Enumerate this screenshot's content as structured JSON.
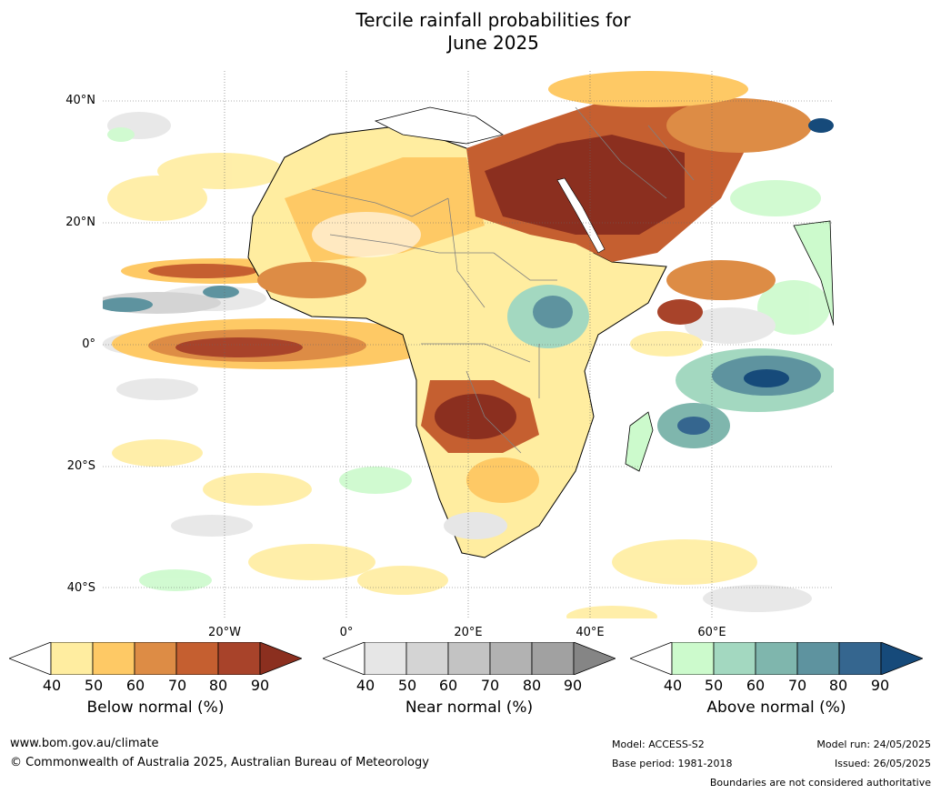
{
  "title_line1": "Tercile rainfall probabilities for",
  "title_line2": "June 2025",
  "lat_labels": [
    "40°N",
    "20°N",
    "0°",
    "20°S",
    "40°S"
  ],
  "lon_labels": [
    "20°W",
    "0°",
    "20°E",
    "40°E",
    "60°E"
  ],
  "colorbars": [
    {
      "title": "Below normal (%)",
      "ticks": [
        "40",
        "50",
        "60",
        "70",
        "80",
        "90"
      ],
      "colors": [
        "#ffffff",
        "#ffeda0",
        "#fec965",
        "#dd8c45",
        "#c55f30",
        "#a8432a",
        "#8b2f1f"
      ]
    },
    {
      "title": "Near normal (%)",
      "ticks": [
        "40",
        "50",
        "60",
        "70",
        "80",
        "90"
      ],
      "colors": [
        "#ffffff",
        "#e6e6e6",
        "#d4d4d4",
        "#c3c3c3",
        "#b2b2b2",
        "#a1a1a1",
        "#858585"
      ]
    },
    {
      "title": "Above normal (%)",
      "ticks": [
        "40",
        "50",
        "60",
        "70",
        "80",
        "90"
      ],
      "colors": [
        "#ffffff",
        "#ccfacc",
        "#a3d8c0",
        "#7fb6ad",
        "#5e939f",
        "#35668f",
        "#164a7a"
      ]
    }
  ],
  "footer": {
    "website": "www.bom.gov.au/climate",
    "copyright": "© Commonwealth of Australia 2025, Australian Bureau of Meteorology",
    "model": "Model: ACCESS-S2",
    "base_period": "Base period: 1981-2018",
    "model_run": "Model run: 24/05/2025",
    "issued": "Issued: 26/05/2025",
    "disclaimer": "Boundaries are not considered authoritative"
  }
}
